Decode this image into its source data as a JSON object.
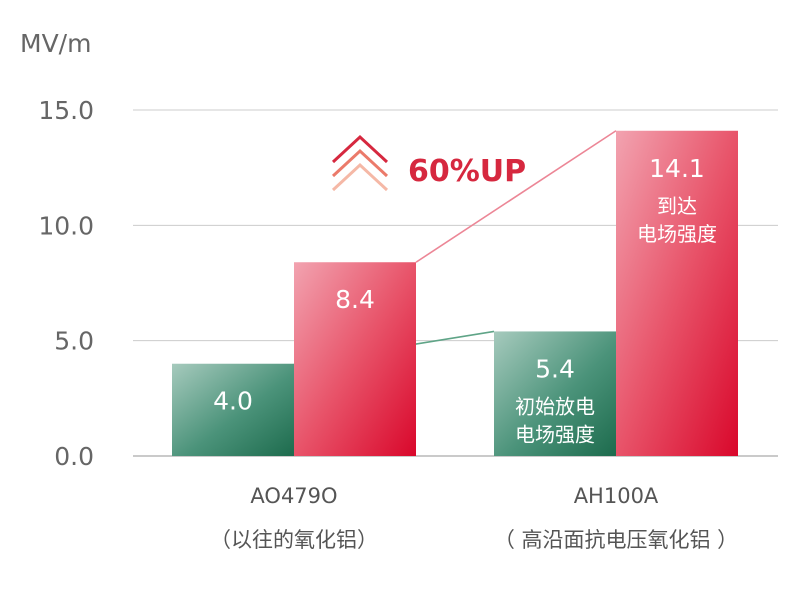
{
  "chart_data": {
    "type": "bar",
    "unit_label": "MV/m",
    "ylim": [
      0,
      15
    ],
    "yticks": [
      "0.0",
      "5.0",
      "10.0",
      "15.0"
    ],
    "categories": [
      "AO479O",
      "AH100A"
    ],
    "category_notes": [
      "（以往的氧化铝）",
      "（ 高沿面抗电压氧化铝 ）"
    ],
    "grid": true,
    "series": [
      {
        "values": [
          4.0,
          5.4
        ],
        "value_labels": [
          "4.0",
          "5.4"
        ],
        "note": [
          "初始放电",
          "电场强度"
        ],
        "color": "#2e7d5f"
      },
      {
        "values": [
          8.4,
          14.1
        ],
        "value_labels": [
          "8.4",
          "14.1"
        ],
        "note": [
          "到达",
          "电场强度"
        ],
        "color": "#e0324b"
      }
    ],
    "annotation": "60%UP",
    "colors": {
      "green": "#2e7d5f",
      "red": "#e0324b",
      "arrow": "#d6283f",
      "grid": "#cccccc"
    }
  }
}
